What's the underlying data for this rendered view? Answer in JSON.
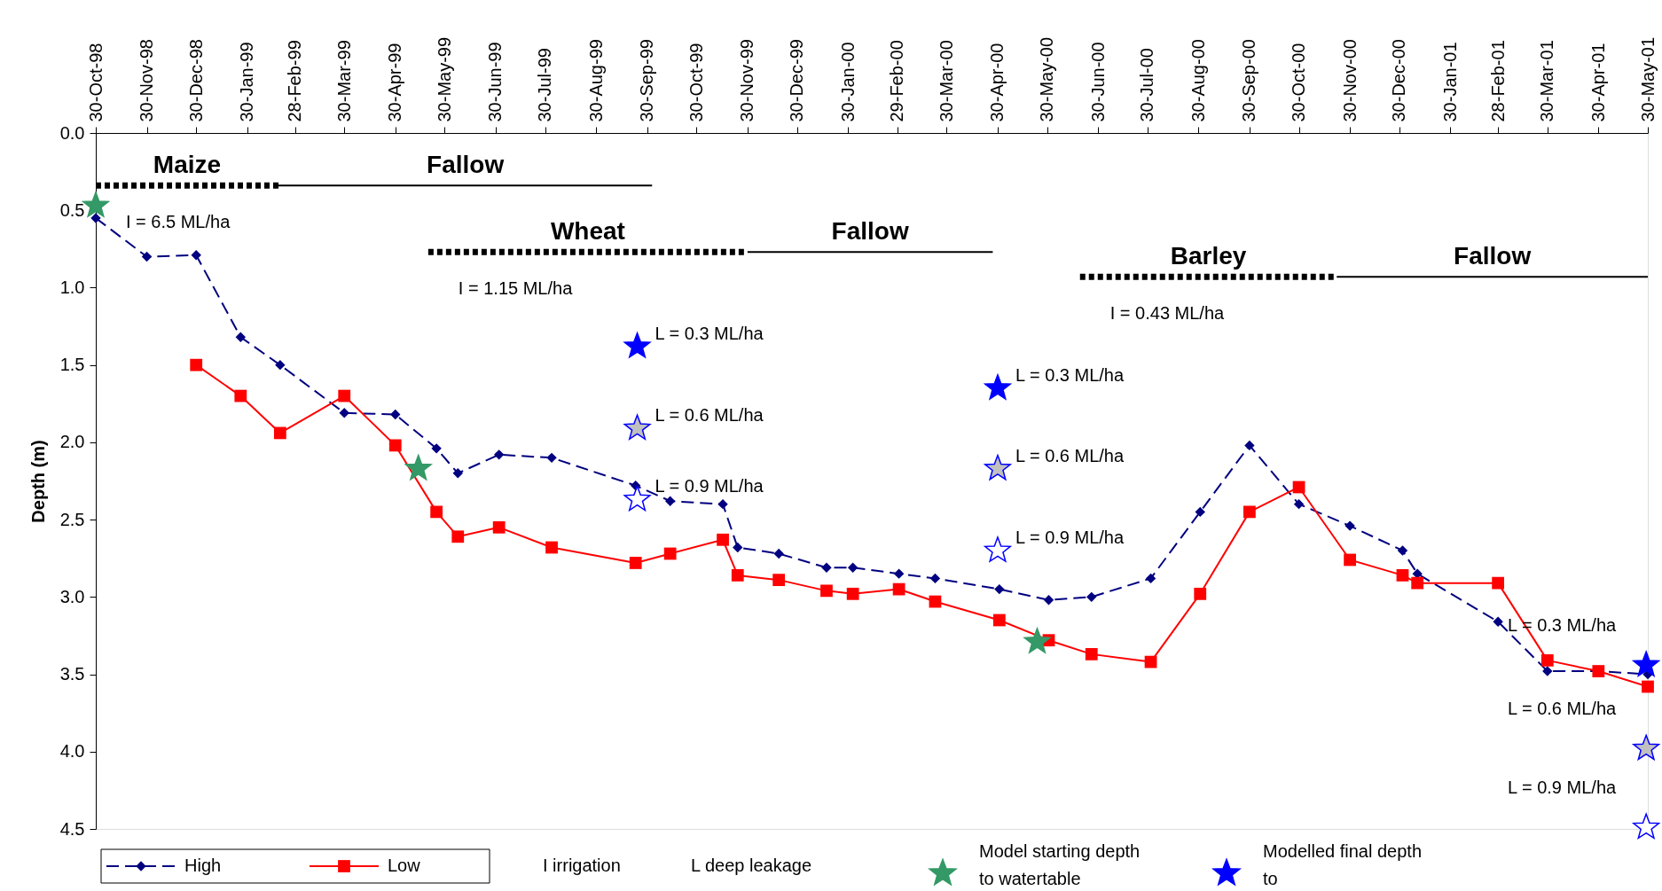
{
  "chart_data": {
    "type": "line",
    "ylabel": "Depth (m)",
    "xlim": [
      "1998-10-30",
      "2001-05-30"
    ],
    "xticks": [
      {
        "value": "1998-10-30",
        "label": "30-Oct-98"
      },
      {
        "value": "1998-11-30",
        "label": "30-Nov-98"
      },
      {
        "value": "1998-12-30",
        "label": "30-Dec-98"
      },
      {
        "value": "1999-01-30",
        "label": "30-Jan-99"
      },
      {
        "value": "1999-02-28",
        "label": "28-Feb-99"
      },
      {
        "value": "1999-03-30",
        "label": "30-Mar-99"
      },
      {
        "value": "1999-04-30",
        "label": "30-Apr-99"
      },
      {
        "value": "1999-05-30",
        "label": "30-May-99"
      },
      {
        "value": "1999-06-30",
        "label": "30-Jun-99"
      },
      {
        "value": "1999-07-30",
        "label": "30-Jul-99"
      },
      {
        "value": "1999-08-30",
        "label": "30-Aug-99"
      },
      {
        "value": "1999-09-30",
        "label": "30-Sep-99"
      },
      {
        "value": "1999-10-30",
        "label": "30-Oct-99"
      },
      {
        "value": "1999-11-30",
        "label": "30-Nov-99"
      },
      {
        "value": "1999-12-30",
        "label": "30-Dec-99"
      },
      {
        "value": "2000-01-30",
        "label": "30-Jan-00"
      },
      {
        "value": "2000-02-29",
        "label": "29-Feb-00"
      },
      {
        "value": "2000-03-30",
        "label": "30-Mar-00"
      },
      {
        "value": "2000-04-30",
        "label": "30-Apr-00"
      },
      {
        "value": "2000-05-30",
        "label": "30-May-00"
      },
      {
        "value": "2000-06-30",
        "label": "30-Jun-00"
      },
      {
        "value": "2000-07-30",
        "label": "30-Jul-00"
      },
      {
        "value": "2000-08-30",
        "label": "30-Aug-00"
      },
      {
        "value": "2000-09-30",
        "label": "30-Sep-00"
      },
      {
        "value": "2000-10-30",
        "label": "30-Oct-00"
      },
      {
        "value": "2000-11-30",
        "label": "30-Nov-00"
      },
      {
        "value": "2000-12-30",
        "label": "30-Dec-00"
      },
      {
        "value": "2001-01-30",
        "label": "30-Jan-01"
      },
      {
        "value": "2001-02-28",
        "label": "28-Feb-01"
      },
      {
        "value": "2001-03-30",
        "label": "30-Mar-01"
      },
      {
        "value": "2001-04-30",
        "label": "30-Apr-01"
      },
      {
        "value": "2001-05-30",
        "label": "30-May-01"
      }
    ],
    "ylim": [
      4.5,
      0
    ],
    "yticks": [
      {
        "value": 0,
        "label": "0.0"
      },
      0.5,
      {
        "value": 1,
        "label": "1.0"
      },
      1.5,
      {
        "value": 2,
        "label": "2.0"
      },
      2.5,
      {
        "value": 3,
        "label": "3.0"
      },
      3.5,
      {
        "value": 4,
        "label": "4.0"
      },
      4.5
    ],
    "grid": false,
    "legend": "bottom",
    "series": [
      {
        "name": "High",
        "color": "#000080",
        "marker": "diamond",
        "line_style": "dashed",
        "x": [
          "1998-10-30",
          "1998-11-30",
          "1998-12-30",
          "1999-01-26",
          "1999-02-19",
          "1999-03-30",
          "1999-04-30",
          "1999-05-25",
          "1999-06-07",
          "1999-07-02",
          "1999-08-03",
          "1999-09-23",
          "1999-10-14",
          "1999-11-15",
          "1999-11-24",
          "1999-12-19",
          "2000-01-17",
          "2000-02-02",
          "2000-03-01",
          "2000-03-23",
          "2000-05-01",
          "2000-05-31",
          "2000-06-26",
          "2000-08-01",
          "2000-08-31",
          "2000-09-30",
          "2000-10-30",
          "2000-11-30",
          "2001-01-01",
          "2001-01-10",
          "2001-02-28",
          "2001-03-30",
          "2001-04-30",
          "2001-05-30"
        ],
        "values": [
          0.55,
          0.8,
          0.79,
          1.32,
          1.5,
          1.81,
          1.82,
          2.04,
          2.2,
          2.08,
          2.1,
          2.28,
          2.38,
          2.4,
          2.68,
          2.72,
          2.81,
          2.81,
          2.85,
          2.88,
          2.95,
          3.02,
          3.0,
          2.88,
          2.45,
          2.02,
          2.4,
          2.54,
          2.7,
          2.85,
          3.16,
          3.48,
          3.48,
          3.5
        ]
      },
      {
        "name": "Low",
        "color": "#ff0000",
        "marker": "square",
        "line_style": "solid",
        "x": [
          "1998-12-30",
          "1999-01-26",
          "1999-02-19",
          "1999-03-30",
          "1999-04-30",
          "1999-05-25",
          "1999-06-07",
          "1999-07-02",
          "1999-08-03",
          "1999-09-23",
          "1999-10-14",
          "1999-11-15",
          "1999-11-24",
          "1999-12-19",
          "2000-01-17",
          "2000-02-02",
          "2000-03-01",
          "2000-03-23",
          "2000-05-01",
          "2000-05-31",
          "2000-06-26",
          "2000-08-01",
          "2000-08-31",
          "2000-09-30",
          "2000-10-30",
          "2000-11-30",
          "2001-01-01",
          "2001-01-10",
          "2001-02-28",
          "2001-03-30",
          "2001-04-30",
          "2001-05-30"
        ],
        "values": [
          1.5,
          1.7,
          1.94,
          1.7,
          2.02,
          2.45,
          2.61,
          2.55,
          2.68,
          2.78,
          2.72,
          2.63,
          2.86,
          2.89,
          2.96,
          2.98,
          2.95,
          3.03,
          3.15,
          3.28,
          3.37,
          3.42,
          2.98,
          2.45,
          2.29,
          2.76,
          2.86,
          2.91,
          2.91,
          3.41,
          3.48,
          3.58
        ]
      },
      {
        "name": "Maize",
        "color": "#000000",
        "marker": "none",
        "line_style": "dotted",
        "x": [
          "1998-10-30",
          "1999-02-18"
        ],
        "values": [
          0.34,
          0.34
        ]
      },
      {
        "name": "Fallow",
        "color": "#000000",
        "marker": "none",
        "line_style": "solid",
        "x": [
          "1999-02-18",
          "1999-10-03"
        ],
        "values": [
          0.34,
          0.34
        ]
      },
      {
        "name": "Wheat",
        "color": "#000000",
        "marker": "none",
        "line_style": "dotted",
        "x": [
          "1999-05-20",
          "1999-11-30"
        ],
        "values": [
          0.77,
          0.77
        ]
      },
      {
        "name": "Fallow",
        "color": "#000000",
        "marker": "none",
        "line_style": "solid",
        "x": [
          "1999-11-30",
          "2000-04-27"
        ],
        "values": [
          0.77,
          0.77
        ]
      },
      {
        "name": "Barley",
        "color": "#000000",
        "marker": "none",
        "line_style": "dotted",
        "x": [
          "2000-06-19",
          "2000-11-22"
        ],
        "values": [
          0.93,
          0.93
        ]
      },
      {
        "name": "Fallow",
        "color": "#000000",
        "marker": "none",
        "line_style": "solid",
        "x": [
          "2000-11-22",
          "2001-05-30"
        ],
        "values": [
          0.93,
          0.93
        ]
      },
      {
        "name": "Model starting depth to watertable",
        "type": "scatter",
        "color": "#339966",
        "marker": "star",
        "x": [
          "1998-10-30",
          "1999-05-14",
          "2000-05-24"
        ],
        "values": [
          0.47,
          2.17,
          3.29
        ]
      },
      {
        "name": "Modelled final depth to",
        "type": "scatter",
        "color": "#0000ff",
        "marker": "star",
        "x": [
          "1999-09-24",
          "2000-04-30",
          "2001-05-29"
        ],
        "values": [
          1.38,
          1.65,
          3.44
        ]
      },
      {
        "type": "scatter",
        "color": "#c0c0c0",
        "marker": "star",
        "x": [
          "1999-09-24",
          "2000-04-30",
          "2001-05-29"
        ],
        "values": [
          1.91,
          2.17,
          3.98
        ]
      },
      {
        "type": "scatter",
        "color": "#ffffff",
        "marker": "star",
        "x": [
          "1999-09-24",
          "2000-04-30",
          "2001-05-29"
        ],
        "values": [
          2.37,
          2.7,
          4.49
        ]
      }
    ],
    "annotations": [
      {
        "text": "I = 6.5 ML/ha",
        "x": "1998-10-30",
        "y": 0.34
      },
      {
        "text": "I = 1.15 ML/ha",
        "x": "1999-05-20",
        "y": 0.77
      },
      {
        "text": "I = 0.43 ML/ha",
        "x": "2000-06-19",
        "y": 0.93
      },
      {
        "text": "L = 0.3 ML/ha",
        "x": "1999-09-24",
        "y": 1.38
      },
      {
        "text": "L = 0.6 ML/ha",
        "x": "1999-09-24",
        "y": 1.91
      },
      {
        "text": "L = 0.9 ML/ha",
        "x": "1999-09-24",
        "y": 2.37
      },
      {
        "text": "L = 0.3 ML/ha",
        "x": "2000-04-30",
        "y": 1.65
      },
      {
        "text": "L = 0.6 ML/ha",
        "x": "2000-04-30",
        "y": 2.17
      },
      {
        "text": "L = 0.9 ML/ha",
        "x": "2000-04-30",
        "y": 2.7
      },
      {
        "text": "L = 0.3 ML/ha",
        "x": "2001-05-29",
        "y": 3.44
      },
      {
        "text": "L = 0.6 ML/ha",
        "x": "2001-05-29",
        "y": 3.98
      },
      {
        "text": "L = 0.9 ML/ha",
        "x": "2001-05-29",
        "y": 4.49
      },
      "I   irrigation",
      "L   deep leakage"
    ]
  }
}
